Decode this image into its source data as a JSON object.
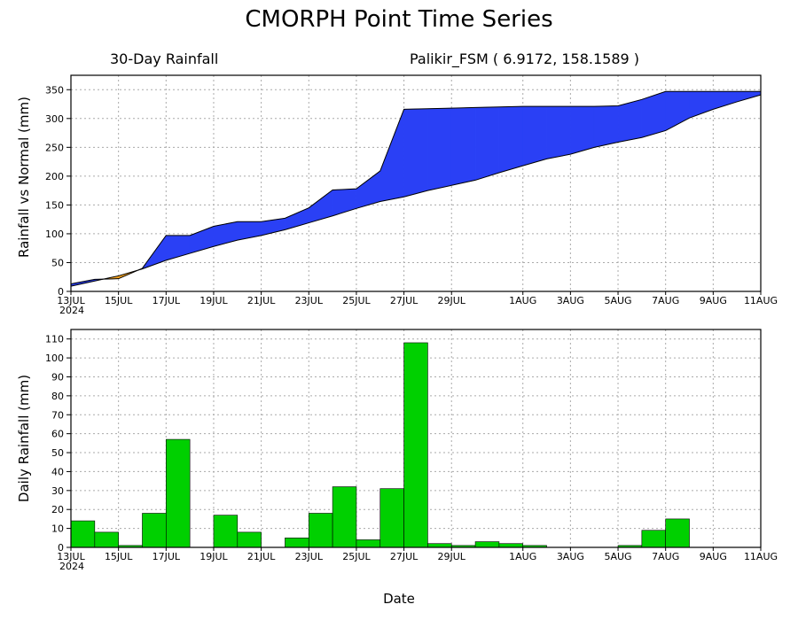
{
  "header": {
    "title": "CMORPH Point Time Series",
    "subtitle_left": "30-Day Rainfall",
    "subtitle_right": "Palikir_FSM ( 6.9172, 158.1589 )"
  },
  "xaxis": {
    "label": "Date",
    "year_label": "2024",
    "ticks": [
      {
        "day": 0,
        "label": "13JUL"
      },
      {
        "day": 2,
        "label": "15JUL"
      },
      {
        "day": 4,
        "label": "17JUL"
      },
      {
        "day": 6,
        "label": "19JUL"
      },
      {
        "day": 8,
        "label": "21JUL"
      },
      {
        "day": 10,
        "label": "23JUL"
      },
      {
        "day": 12,
        "label": "25JUL"
      },
      {
        "day": 14,
        "label": "27JUL"
      },
      {
        "day": 16,
        "label": "29JUL"
      },
      {
        "day": 19,
        "label": "1AUG"
      },
      {
        "day": 21,
        "label": "3AUG"
      },
      {
        "day": 23,
        "label": "5AUG"
      },
      {
        "day": 25,
        "label": "7AUG"
      },
      {
        "day": 27,
        "label": "9AUG"
      },
      {
        "day": 29,
        "label": "11AUG"
      }
    ]
  },
  "chart_data": [
    {
      "type": "area",
      "ylabel": "Rainfall vs Normal (mm)",
      "xlim": [
        0,
        29
      ],
      "ylim": [
        0,
        375
      ],
      "yticks": [
        0,
        50,
        100,
        150,
        200,
        250,
        300,
        350
      ],
      "grid": true,
      "day": [
        0,
        1,
        2,
        3,
        4,
        5,
        6,
        7,
        8,
        9,
        10,
        11,
        12,
        13,
        14,
        15,
        16,
        17,
        18,
        19,
        20,
        21,
        22,
        23,
        24,
        25,
        26,
        27,
        28,
        29
      ],
      "series": [
        {
          "role": "observed",
          "values": [
            13,
            21,
            22,
            40,
            97,
            97,
            113,
            121,
            121,
            127,
            145,
            176,
            178,
            209,
            316,
            317,
            318,
            319,
            320,
            321,
            321,
            321,
            321,
            322,
            333,
            347,
            347,
            347,
            347,
            347
          ]
        },
        {
          "role": "normal",
          "values": [
            9,
            18,
            27,
            39,
            54,
            66,
            78,
            89,
            97,
            107,
            119,
            131,
            144,
            156,
            164,
            175,
            184,
            193,
            206,
            218,
            230,
            238,
            250,
            259,
            267,
            279,
            301,
            316,
            329,
            341
          ]
        }
      ],
      "colors": {
        "above_normal": "#2a40f5",
        "below_normal": "#f0a020"
      }
    },
    {
      "type": "bar",
      "ylabel": "Daily Rainfall (mm)",
      "xlim": [
        0,
        29
      ],
      "ylim": [
        0,
        115
      ],
      "yticks": [
        0,
        10,
        20,
        30,
        40,
        50,
        60,
        70,
        80,
        90,
        100,
        110
      ],
      "grid": true,
      "day": [
        0,
        1,
        2,
        3,
        4,
        5,
        6,
        7,
        8,
        9,
        10,
        11,
        12,
        13,
        14,
        15,
        16,
        17,
        18,
        19,
        20,
        21,
        22,
        23,
        24,
        25,
        26,
        27,
        28,
        29
      ],
      "values": [
        14,
        8,
        1,
        18,
        57,
        0,
        17,
        8,
        0,
        5,
        18,
        32,
        4,
        31,
        108,
        2,
        1,
        3,
        2,
        1,
        0,
        0,
        0,
        1,
        9,
        15,
        0,
        0,
        0,
        0
      ],
      "color": "#00d000"
    }
  ]
}
